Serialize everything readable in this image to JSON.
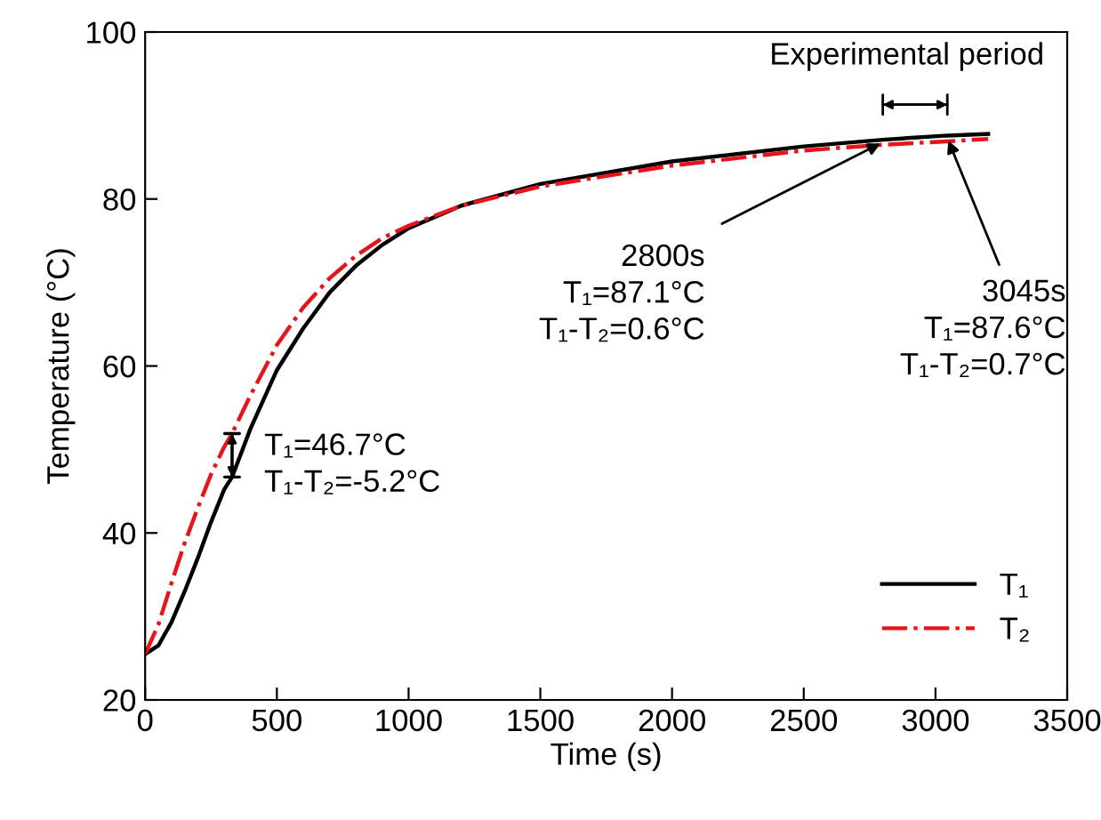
{
  "chart_data": {
    "type": "line",
    "xlabel": "Time (s)",
    "ylabel": "Temperature (°C)",
    "xlim": [
      0,
      3500
    ],
    "xticks": [
      0,
      500,
      1000,
      1500,
      2000,
      2500,
      3000,
      3500
    ],
    "ylim": [
      20,
      100
    ],
    "yticks": [
      20,
      40,
      60,
      80,
      100
    ],
    "grid": false,
    "legend": "bottom right",
    "marker": "none",
    "series": [
      {
        "name": "T₁",
        "color": "#000000",
        "line_style": "solid",
        "x": [
          0,
          50,
          100,
          150,
          200,
          250,
          300,
          330,
          400,
          500,
          600,
          700,
          800,
          900,
          1000,
          1200,
          1500,
          2000,
          2500,
          2800,
          3045,
          3200
        ],
        "values": [
          25.5,
          26.5,
          29.3,
          33,
          37,
          41.3,
          45.2,
          46.7,
          52.5,
          59.5,
          64.5,
          68.8,
          72,
          74.5,
          76.5,
          79.2,
          81.8,
          84.5,
          86.3,
          87.1,
          87.6,
          87.8
        ]
      },
      {
        "name": "T₂",
        "color": "#e8141c",
        "line_style": "dashdot",
        "x": [
          0,
          50,
          100,
          150,
          200,
          250,
          300,
          330,
          400,
          500,
          600,
          700,
          800,
          900,
          1000,
          1200,
          1500,
          2000,
          2500,
          2800,
          3045,
          3200
        ],
        "values": [
          25.5,
          29,
          34,
          38.8,
          43,
          47,
          50.3,
          51.9,
          56.5,
          62.5,
          67,
          70.5,
          73.2,
          75.3,
          76.8,
          79.2,
          81.5,
          84,
          85.8,
          86.5,
          86.9,
          87.2
        ]
      }
    ],
    "annotations": [
      "Experimental period",
      {
        "text": "2800s\nT₁=87.1°C\nT₁-T₂=0.6°C",
        "x": 2800,
        "y": 87.1
      },
      {
        "text": "3045s\nT₁=87.6°C\nT₁-T₂=0.7°C",
        "x": 3045,
        "y": 87.6
      },
      {
        "text": "T₁=46.7°C\nT₁-T₂=-5.2°C",
        "x": 330,
        "y": 46.7
      }
    ]
  }
}
